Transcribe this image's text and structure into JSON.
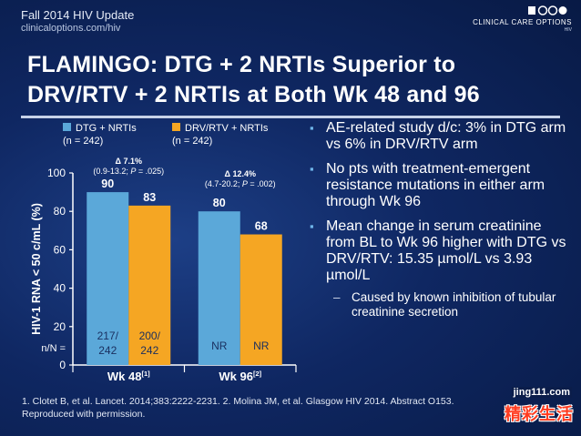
{
  "header": {
    "title": "Fall 2014 HIV Update",
    "url": "clinicaloptions.com/hiv",
    "logo_text": "CLINICAL CARE OPTIONS",
    "logo_sub": "HIV"
  },
  "slide": {
    "title_line1": "FLAMINGO: DTG + 2 NRTIs Superior to",
    "title_line2": "DRV/RTV + 2 NRTIs at Both Wk 48 and 96"
  },
  "colors": {
    "dtg": "#5ba8d9",
    "drv": "#f5a623",
    "bullet": "#6fb6ea"
  },
  "chart_data": {
    "type": "bar",
    "categories": [
      "Wk 48",
      "Wk 96"
    ],
    "category_refs": [
      "[1]",
      "[2]"
    ],
    "series": [
      {
        "name": "DTG + NRTIs",
        "n_label": "(n = 242)",
        "values": [
          90,
          80
        ],
        "n_over_N": [
          "217/\n242",
          "NR"
        ],
        "color": "#5ba8d9"
      },
      {
        "name": "DRV/RTV + NRTIs",
        "n_label": "(n = 242)",
        "values": [
          83,
          68
        ],
        "n_over_N": [
          "200/\n242",
          "NR"
        ],
        "color": "#f5a623"
      }
    ],
    "deltas": [
      {
        "label": "Δ 7.1%",
        "ci_prefix": "(0.9-13.2; ",
        "p": "P",
        "ci_suffix": " = .025)"
      },
      {
        "label": "Δ 12.4%",
        "ci_prefix": "(4.7-20.2; ",
        "p": "P",
        "ci_suffix": " = .002)"
      }
    ],
    "ylabel": "HIV-1 RNA < 50 c/mL (%)",
    "yticks": [
      0,
      20,
      40,
      60,
      80,
      100
    ],
    "ylim": [
      0,
      100
    ],
    "n_row_label": "n/N ="
  },
  "bullets": [
    {
      "text": "AE-related study d/c: 3% in DTG arm vs 6% in DRV/RTV arm",
      "subs": []
    },
    {
      "text": "No pts with treatment-emergent resistance mutations in either arm through Wk 96",
      "subs": []
    },
    {
      "text": "Mean change in serum creatinine from BL to Wk 96 higher with DTG vs DRV/RTV: 15.35 µmol/L vs 3.93 µmol/L",
      "subs": [
        "Caused by known inhibition of tubular creatinine secretion"
      ]
    }
  ],
  "footer": {
    "line1": "1. Clotet B, et al. Lancet. 2014;383:2222-2231. 2. Molina JM, et al. Glasgow HIV 2014. Abstract O153.",
    "line2": "Reproduced with permission."
  },
  "watermark": {
    "url": "jing111.com",
    "cn": "精彩生活"
  }
}
